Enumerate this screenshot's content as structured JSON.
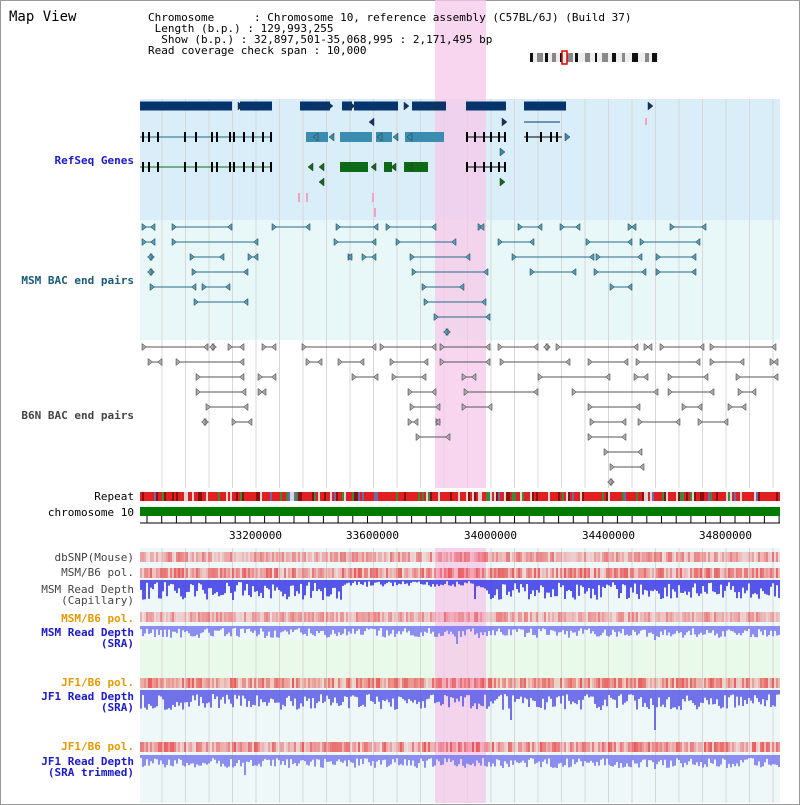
{
  "app_title": "Map View",
  "info": {
    "chromosome_label": "Chromosome      : ",
    "chromosome_value": "Chromosome 10, reference assembly (C57BL/6J) (Build 37)",
    "length_label": " Length (b.p.) : ",
    "length_value": "129,993,255",
    "show_label": "  Show (b.p.) : ",
    "show_value": "32,897,501-35,068,995 : 2,171,495 bp",
    "span_label": "Read coverage check span : ",
    "span_value": "10,000"
  },
  "tracks": {
    "refseq": "RefSeq Genes",
    "msm_bac": "MSM BAC end pairs",
    "b6n_bac": "B6N BAC end pairs",
    "repeat": "Repeat",
    "chromosome": "chromosome 10",
    "dbsnp": "dbSNP(Mouse)",
    "msm_b6_pol": "MSM/B6 pol.",
    "msm_depth_cap_1": "MSM Read Depth",
    "msm_depth_cap_2": "(Capillary)",
    "msm_b6_pol2": "MSM/B6 pol.",
    "msm_depth_sra_1": "MSM Read Depth",
    "msm_depth_sra_2": "(SRA)",
    "jf1_b6_pol": "JF1/B6 pol.",
    "jf1_depth_sra_1": "JF1 Read Depth",
    "jf1_depth_sra_2": "(SRA)",
    "jf1_b6_pol2": "JF1/B6 pol.",
    "jf1_depth_trim_1": "JF1 Read Depth",
    "jf1_depth_trim_2": "(SRA trimmed)"
  },
  "axis_ticks": [
    "33200000",
    "33600000",
    "34000000",
    "34400000",
    "34800000"
  ],
  "colors": {
    "refseq_bg": "#d9eef8",
    "bac_bg": "#e8f8f8",
    "highlight": "#f5c8ea",
    "chromosome_bar": "#007a00",
    "gene_dark": "#06356e",
    "gene_light": "#3a8cb0",
    "gene_green": "#0d6b18",
    "depth_blue": "#3a3ae6",
    "snp_red": "#e84040"
  }
}
